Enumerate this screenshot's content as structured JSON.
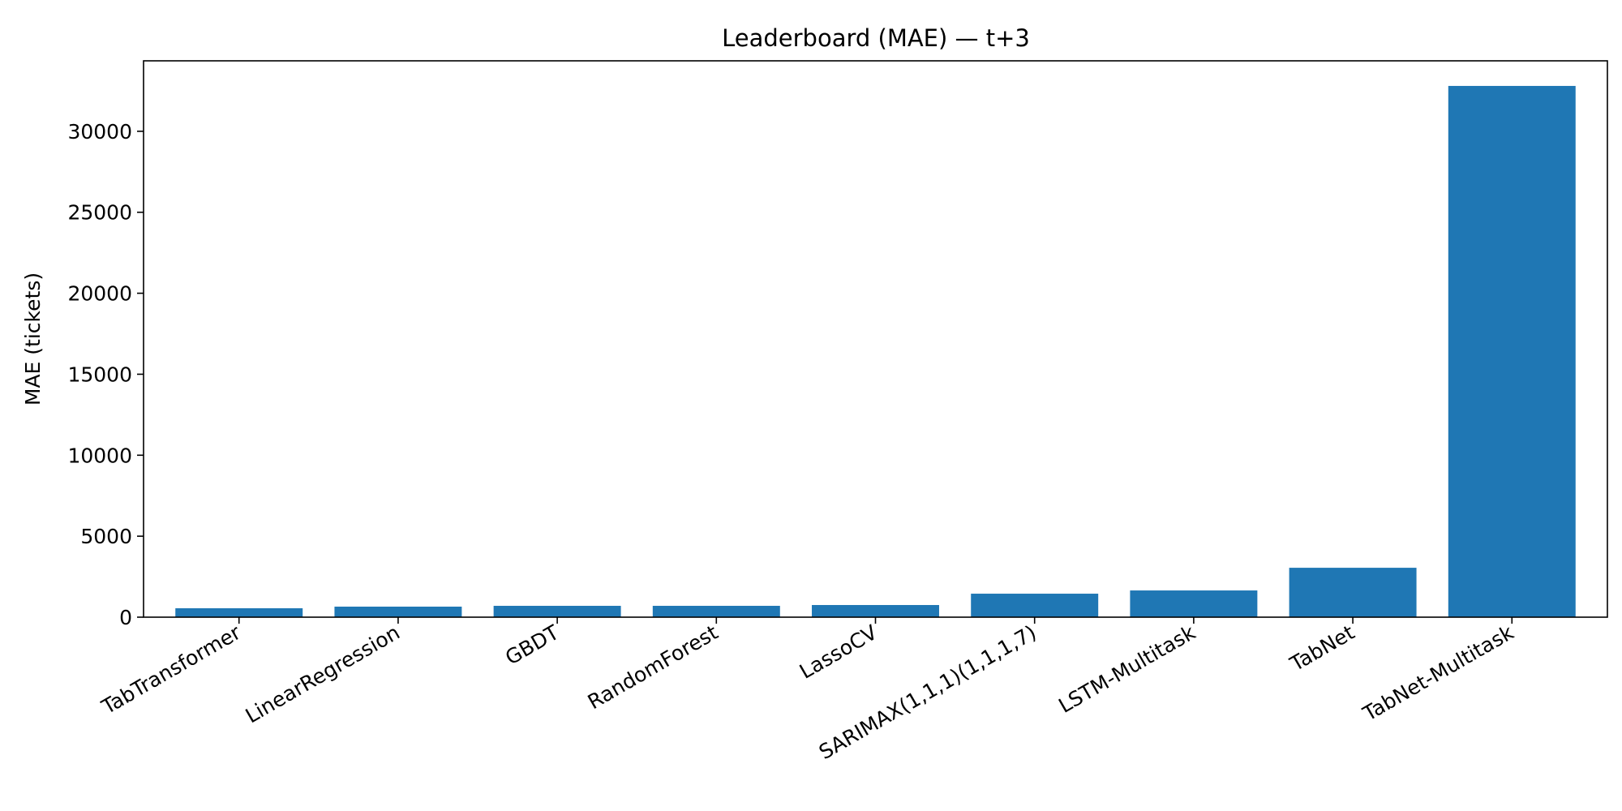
{
  "chart_data": {
    "type": "bar",
    "title": "Leaderboard (MAE) — t+3",
    "xlabel": "",
    "ylabel": "MAE (tickets)",
    "categories": [
      "TabTransformer",
      "LinearRegression",
      "GBDT",
      "RandomForest",
      "LassoCV",
      "SARIMAX(1,1,1)(1,1,1,7)",
      "LSTM-Multitask",
      "TabNet",
      "TabNet-Multitask"
    ],
    "values": [
      550,
      650,
      700,
      700,
      750,
      1450,
      1650,
      3050,
      32800
    ],
    "ylim": [
      0,
      34350
    ],
    "yticks": [
      0,
      5000,
      10000,
      15000,
      20000,
      25000,
      30000
    ],
    "bar_color": "#1f77b4",
    "grid": false,
    "legend": "none"
  }
}
